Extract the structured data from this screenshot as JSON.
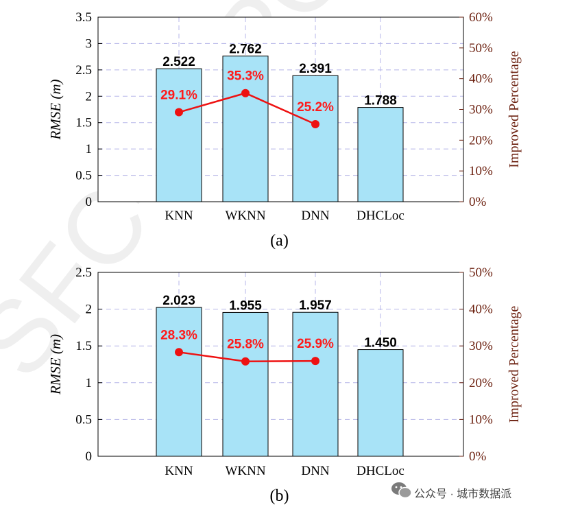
{
  "chart_data": [
    {
      "type": "bar",
      "caption": "(a)",
      "categories": [
        "KNN",
        "WKNN",
        "DNN",
        "DHCLoc"
      ],
      "values": [
        2.522,
        2.762,
        2.391,
        1.788
      ],
      "value_labels": [
        "2.522",
        "2.762",
        "2.391",
        "1.788"
      ],
      "ylabel": "RMSE (m)",
      "ylim": [
        0,
        3.5
      ],
      "yticks": [
        "0",
        "0.5",
        "1",
        "1.5",
        "2",
        "2.5",
        "3",
        "3.5"
      ],
      "y2label": "Improved Percentage",
      "y2lim": [
        0,
        60
      ],
      "y2ticks": [
        "0%",
        "10%",
        "20%",
        "30%",
        "40%",
        "50%",
        "60%"
      ],
      "line": {
        "name": "Improved Percentage",
        "values": [
          29.1,
          35.3,
          25.2
        ],
        "labels": [
          "29.1%",
          "35.3%",
          "25.2%"
        ]
      },
      "grid": true,
      "colors": {
        "bar": "#a8e3f7",
        "line": "#ee1111"
      }
    },
    {
      "type": "bar",
      "caption": "(b)",
      "categories": [
        "KNN",
        "WKNN",
        "DNN",
        "DHCLoc"
      ],
      "values": [
        2.023,
        1.955,
        1.957,
        1.45
      ],
      "value_labels": [
        "2.023",
        "1.955",
        "1.957",
        "1.450"
      ],
      "ylabel": "RMSE (m)",
      "ylim": [
        0,
        2.5
      ],
      "yticks": [
        "0",
        "0.5",
        "1",
        "1.5",
        "2",
        "2.5"
      ],
      "y2label": "Improved Percentage",
      "y2lim": [
        0,
        50
      ],
      "y2ticks": [
        "0%",
        "10%",
        "20%",
        "30%",
        "40%",
        "50%"
      ],
      "line": {
        "name": "Improved Percentage",
        "values": [
          28.3,
          25.8,
          25.9
        ],
        "labels": [
          "28.3%",
          "25.8%",
          "25.9%"
        ]
      },
      "grid": true,
      "colors": {
        "bar": "#a8e3f7",
        "line": "#ee1111"
      }
    }
  ],
  "watermark": {
    "text": "公众号 · 城市数据派"
  },
  "background_watermark": "SFC-REPORT"
}
